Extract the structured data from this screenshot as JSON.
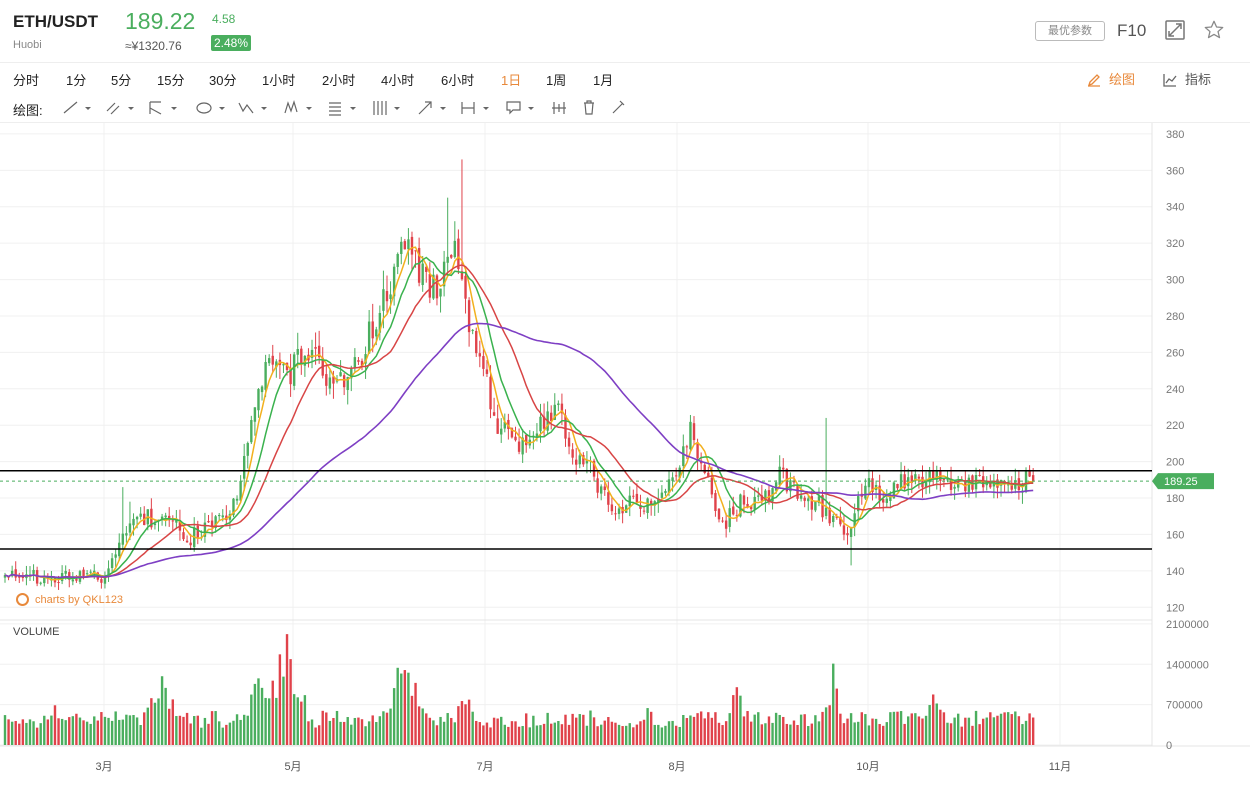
{
  "header": {
    "symbol": "ETH/USDT",
    "exchange": "Huobi",
    "price": "189.22",
    "change": "4.58",
    "cny_price": "≈¥1320.76",
    "change_pct": "2.48%",
    "params_button": "最优参数",
    "f10_label": "F10",
    "up_color": "#4aae5e",
    "down_color": "#e0424a"
  },
  "periods": [
    "分时",
    "1分",
    "5分",
    "15分",
    "30分",
    "1小时",
    "2小时",
    "4小时",
    "6小时",
    "1日",
    "1周",
    "1月"
  ],
  "active_period": "1日",
  "tools": {
    "draw_label": "绘图",
    "indicator_label": "指标",
    "toolbar_label": "绘图:"
  },
  "toolbar_icons": [
    "trendline-icon",
    "channel-icon",
    "fork-icon",
    "ellipse-icon",
    "wave-icon",
    "pattern-icon",
    "fibonacci-icon",
    "gann-icon",
    "arrow-icon",
    "measure-icon",
    "comment-icon",
    "magnet-icon",
    "trash-icon",
    "lock-icon"
  ],
  "watermark": "charts by QKL123",
  "chart_data": {
    "type": "candlestick",
    "price_axis": {
      "ticks": [
        120,
        140,
        160,
        180,
        200,
        220,
        240,
        260,
        280,
        300,
        320,
        340,
        360,
        380
      ],
      "range": [
        113,
        386
      ]
    },
    "volume_axis": {
      "label": "VOLUME",
      "ticks": [
        0,
        700000,
        1400000,
        2100000
      ],
      "range": [
        0,
        2150000
      ]
    },
    "x_axis": {
      "labels": [
        "3月",
        "5月",
        "7月",
        "8月",
        "10月",
        "11月"
      ]
    },
    "current_price_label": "189.25",
    "horizontal_lines": [
      195,
      152
    ],
    "ma_colors": [
      "#f2b01e",
      "#3ab24e",
      "#d84545",
      "#7e3fc4"
    ],
    "ma_periods": [
      5,
      10,
      20,
      60
    ],
    "anchor_days": [
      0,
      14,
      28,
      35,
      45,
      52,
      56,
      62,
      66,
      73,
      80,
      87,
      90,
      94,
      100,
      108,
      112,
      117,
      121,
      126,
      131,
      138,
      145,
      150,
      155,
      160,
      164,
      170,
      175,
      178,
      186,
      192,
      195,
      201,
      207,
      212,
      217,
      222,
      228,
      236,
      239,
      242,
      246,
      252,
      257,
      262,
      268,
      275,
      277,
      283,
      288
    ],
    "anchor_close": [
      138,
      136,
      137,
      170,
      168,
      158,
      165,
      168,
      190,
      255,
      250,
      268,
      248,
      245,
      260,
      300,
      323,
      300,
      295,
      316,
      270,
      220,
      210,
      220,
      228,
      200,
      195,
      172,
      180,
      175,
      185,
      220,
      200,
      165,
      180,
      176,
      192,
      183,
      176,
      158,
      178,
      186,
      181,
      189,
      188,
      192,
      188,
      190,
      189,
      190,
      189
    ],
    "volume_profile": [
      [
        0,
        1,
        180000
      ],
      [
        14,
        2,
        700000
      ],
      [
        26,
        4,
        560000
      ],
      [
        40,
        5,
        360000
      ],
      [
        44,
        8,
        1250000
      ],
      [
        72,
        10,
        1250000
      ],
      [
        79,
        8,
        1850000
      ],
      [
        92,
        6,
        520000
      ],
      [
        112,
        9,
        1550000
      ],
      [
        129,
        6,
        950000
      ],
      [
        148,
        5,
        420000
      ],
      [
        168,
        5,
        560000
      ],
      [
        180,
        5,
        640000
      ],
      [
        205,
        4,
        1050000
      ],
      [
        232,
        3,
        1300000
      ],
      [
        244,
        6,
        460000
      ],
      [
        260,
        3,
        1400000
      ],
      [
        268,
        8,
        480000
      ],
      [
        288,
        1,
        360000
      ]
    ],
    "volume_axis_zero_label": "0",
    "num_days": 289
  }
}
